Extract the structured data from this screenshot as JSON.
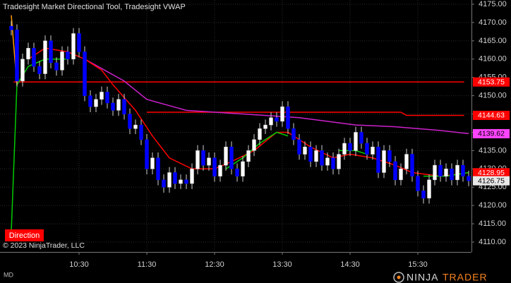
{
  "chart_data": {
    "type": "candlestick",
    "title": "Tradesight Market Directional Tool, Tradesight VWAP",
    "copyright": "© 2023 NinjaTrader, LLC",
    "direction_label": "Direction",
    "instrument_label": "MD",
    "logo": {
      "first": "NINJA",
      "second": "TRADER"
    },
    "grid": true,
    "up_color": "#ffffff",
    "down_color": "#0000ff",
    "x": [
      570,
      575,
      580,
      585,
      590,
      595,
      600,
      605,
      610,
      615,
      620,
      625,
      630,
      635,
      640,
      645,
      650,
      655,
      660,
      665,
      670,
      675,
      680,
      685,
      690,
      695,
      700,
      705,
      710,
      715,
      720,
      725,
      730,
      735,
      740,
      745,
      750,
      755,
      760,
      765,
      770,
      775,
      780,
      785,
      790,
      795,
      800,
      805,
      810,
      815,
      820,
      825,
      830,
      835,
      840,
      845,
      850,
      855,
      860,
      865,
      870,
      875,
      880,
      885,
      890,
      895,
      900,
      905,
      910,
      915,
      920,
      925,
      930,
      935,
      940,
      945,
      950,
      955,
      960,
      965,
      970,
      975
    ],
    "open": [
      4169,
      4168,
      4154,
      4160,
      4163,
      4158,
      4156,
      4165,
      4159,
      4157,
      4162,
      4160,
      4167,
      4162,
      4150,
      4147,
      4149,
      4151,
      4148,
      4146,
      4149,
      4145,
      4141,
      4142,
      4138,
      4130,
      4133,
      4127,
      4125,
      4129,
      4126,
      4127,
      4126,
      4130,
      4135,
      4131,
      4133,
      4128,
      4131,
      4136,
      4130,
      4128,
      4132,
      4135,
      4138,
      4141,
      4142,
      4144,
      4143,
      4147,
      4141,
      4138,
      4134,
      4136,
      4132,
      4135,
      4131,
      4133,
      4130,
      4134,
      4137,
      4135,
      4140,
      4137,
      4134,
      4136,
      4129,
      4135,
      4132,
      4127,
      4130,
      4134,
      4128,
      4124,
      4122,
      4127,
      4131,
      4128,
      4130,
      4127,
      4131,
      4128
    ],
    "high": [
      4170.5,
      4169.5,
      4161.5,
      4164.5,
      4164.5,
      4159.5,
      4166.5,
      4166.5,
      4160.5,
      4163.5,
      4163.5,
      4168.5,
      4168.5,
      4163.5,
      4151.5,
      4150.5,
      4152.5,
      4152.5,
      4149.5,
      4150.5,
      4150.5,
      4146.5,
      4143.5,
      4143.5,
      4139.5,
      4134.5,
      4134.5,
      4128.5,
      4130.5,
      4130.5,
      4128.5,
      4128.5,
      4131.5,
      4136.5,
      4136.5,
      4134.5,
      4134.5,
      4132.5,
      4137.5,
      4137.5,
      4131.5,
      4133.5,
      4136.5,
      4139.5,
      4142.5,
      4143.5,
      4145.5,
      4145.5,
      4148.5,
      4148.5,
      4142.5,
      4139.5,
      4137.5,
      4137.5,
      4136.5,
      4136.5,
      4134.5,
      4134.5,
      4135.5,
      4138.5,
      4138.5,
      4141.5,
      4141.5,
      4138.5,
      4137.5,
      4137.5,
      4136.5,
      4136.5,
      4133.5,
      4131.5,
      4135.5,
      4135.5,
      4129.5,
      4125.5,
      4128.5,
      4132.5,
      4132.5,
      4131.5,
      4131.5,
      4132.5,
      4132.5,
      4129.5
    ],
    "low": [
      4166.5,
      4152.5,
      4152.5,
      4158.5,
      4156.5,
      4154.5,
      4154.5,
      4157.5,
      4155.5,
      4155.5,
      4158.5,
      4158.5,
      4160.5,
      4148.5,
      4145.5,
      4145.5,
      4147.5,
      4146.5,
      4144.5,
      4144.5,
      4143.5,
      4139.5,
      4139.5,
      4136.5,
      4128.5,
      4128.5,
      4125.5,
      4123.5,
      4123.5,
      4124.5,
      4124.5,
      4124.5,
      4124.5,
      4128.5,
      4129.5,
      4129.5,
      4126.5,
      4126.5,
      4129.5,
      4128.5,
      4126.5,
      4126.5,
      4130.5,
      4133.5,
      4136.5,
      4139.5,
      4140.5,
      4141.5,
      4141.5,
      4139.5,
      4136.5,
      4132.5,
      4132.5,
      4130.5,
      4130.5,
      4129.5,
      4129.5,
      4128.5,
      4128.5,
      4132.5,
      4133.5,
      4133.5,
      4135.5,
      4132.5,
      4132.5,
      4127.5,
      4127.5,
      4130.5,
      4125.5,
      4125.5,
      4128.5,
      4126.5,
      4122.5,
      4120.5,
      4120.5,
      4125.5,
      4126.5,
      4126.5,
      4125.5,
      4125.5,
      4126.5,
      4125.25
    ],
    "close": [
      4168,
      4154,
      4160,
      4163,
      4158,
      4156,
      4165,
      4159,
      4157,
      4162,
      4160,
      4167,
      4162,
      4150,
      4147,
      4149,
      4151,
      4148,
      4146,
      4149,
      4145,
      4141,
      4142,
      4138,
      4130,
      4133,
      4127,
      4125,
      4129,
      4126,
      4127,
      4126,
      4130,
      4135,
      4131,
      4133,
      4128,
      4131,
      4136,
      4130,
      4128,
      4132,
      4135,
      4138,
      4141,
      4142,
      4144,
      4143,
      4147,
      4141,
      4138,
      4134,
      4136,
      4132,
      4135,
      4131,
      4133,
      4130,
      4134,
      4137,
      4135,
      4140,
      4137,
      4134,
      4136,
      4129,
      4135,
      4132,
      4127,
      4130,
      4134,
      4128,
      4124,
      4122,
      4127,
      4131,
      4128,
      4130,
      4127,
      4131,
      4128,
      4126.75
    ],
    "lines": [
      {
        "color": "#ff0000",
        "x": [
          572,
          971
        ],
        "values": [
          4153.75,
          4153.75
        ]
      },
      {
        "color": "#ff0000",
        "x": [
          690,
          915,
          920,
          971
        ],
        "values": [
          4145.5,
          4145.5,
          4144.63,
          4144.63
        ]
      },
      {
        "color": "#cc22cc",
        "x": [
          635,
          670,
          690,
          725,
          775,
          825,
          875,
          910,
          950,
          975
        ],
        "values": [
          4160,
          4154,
          4149,
          4146,
          4145,
          4144,
          4142,
          4141.5,
          4140.5,
          4139.62
        ]
      },
      {
        "color": "#ff0000",
        "x": [
          585,
          600,
          620,
          635,
          650,
          660,
          680,
          695,
          710,
          730,
          750,
          765,
          785,
          805,
          815,
          835,
          855,
          870,
          890,
          910,
          925,
          950,
          975
        ],
        "values": [
          4160,
          4163,
          4162,
          4160,
          4157,
          4153,
          4146,
          4139,
          4133,
          4130,
          4130,
          4132,
          4135,
          4140,
          4140,
          4136,
          4133,
          4134,
          4133,
          4131,
          4129,
          4128,
          4128.95
        ]
      },
      {
        "color": "#00cc00",
        "x": [
          570,
          575,
          585,
          600,
          620,
          625,
          760,
          775,
          790,
          805,
          815,
          820,
          860,
          875,
          885,
          890,
          935,
          955,
          975
        ],
        "values": [
          4113,
          4153,
          4158,
          4160,
          4160,
          null,
          4130,
          4133,
          4137,
          4140,
          4139,
          null,
          4135,
          4135,
          4134,
          null,
          4128,
          4128,
          4129
        ]
      },
      {
        "color": "#ff9900",
        "x": [
          570,
          575
        ],
        "values": [
          4172,
          4153
        ]
      }
    ],
    "price_markers": [
      {
        "value": 4153.75,
        "color": "#ff0000",
        "text_color": "#ffffff"
      },
      {
        "value": 4144.63,
        "color": "#ff0000",
        "text_color": "#ffffff"
      },
      {
        "value": 4139.62,
        "color": "#ff44ff",
        "text_color": "#000000"
      },
      {
        "value": 4128.95,
        "color": "#ff0000",
        "text_color": "#ffffff"
      },
      {
        "value": 4126.75,
        "color": "#e8e8e8",
        "text_color": "#000000"
      }
    ],
    "xlim": [
      560,
      977.5
    ],
    "xticks": [
      {
        "value": 630,
        "label": "10:30"
      },
      {
        "value": 690,
        "label": "11:30"
      },
      {
        "value": 750,
        "label": "12:30"
      },
      {
        "value": 810,
        "label": "13:30"
      },
      {
        "value": 870,
        "label": "14:30"
      },
      {
        "value": 930,
        "label": "15:30"
      }
    ],
    "ylim": [
      4110,
      4175
    ],
    "yticks": [
      {
        "value": 4110,
        "label": "4110.00"
      },
      {
        "value": 4115,
        "label": "4115.00"
      },
      {
        "value": 4120,
        "label": "4120.00"
      },
      {
        "value": 4125,
        "label": "4125.00"
      },
      {
        "value": 4130,
        "label": "4130.00"
      },
      {
        "value": 4135,
        "label": "4135.00"
      },
      {
        "value": 4140,
        "label": "4140.00"
      },
      {
        "value": 4145,
        "label": "4145.00"
      },
      {
        "value": 4150,
        "label": "4150.00"
      },
      {
        "value": 4155,
        "label": "4155.00"
      },
      {
        "value": 4160,
        "label": "4160.00"
      },
      {
        "value": 4165,
        "label": "4165.00"
      },
      {
        "value": 4170,
        "label": "4170.00"
      },
      {
        "value": 4175,
        "label": "4175.00"
      }
    ]
  }
}
